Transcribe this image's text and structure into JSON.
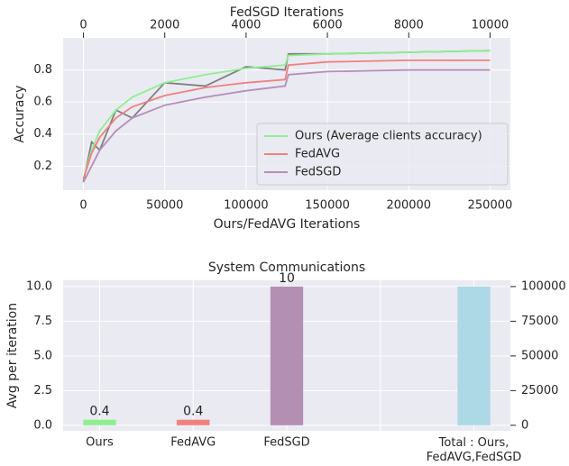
{
  "chart_data": [
    {
      "type": "line",
      "xlabel": "Ours/FedAVG Iterations",
      "x2label": "FedSGD Iterations",
      "ylabel": "Accuracy",
      "x": [
        0,
        5000,
        10000,
        20000,
        30000,
        50000,
        75000,
        100000,
        124000,
        126000,
        150000,
        200000,
        250000
      ],
      "series": [
        {
          "color": "#808080",
          "values": [
            0.1,
            0.35,
            0.3,
            0.55,
            0.5,
            0.72,
            0.7,
            0.82,
            0.8,
            0.9,
            0.9,
            0.91,
            0.92
          ]
        },
        {
          "name": "Ours (Average clients accuracy)",
          "color": "#90ee90",
          "values": [
            0.12,
            0.3,
            0.42,
            0.55,
            0.63,
            0.72,
            0.77,
            0.81,
            0.83,
            0.89,
            0.9,
            0.91,
            0.92
          ]
        },
        {
          "name": "FedAVG",
          "color": "#f08080",
          "values": [
            0.12,
            0.28,
            0.38,
            0.5,
            0.57,
            0.64,
            0.69,
            0.72,
            0.74,
            0.83,
            0.85,
            0.86,
            0.86
          ]
        },
        {
          "name": "FedSGD",
          "color": "#b48fb8",
          "values": [
            0.1,
            0.2,
            0.3,
            0.42,
            0.5,
            0.58,
            0.63,
            0.67,
            0.7,
            0.77,
            0.79,
            0.8,
            0.8
          ]
        }
      ],
      "xlim": [
        -12500,
        262500
      ],
      "xticks": [
        0,
        50000,
        100000,
        150000,
        200000,
        250000
      ],
      "x2lim": [
        -500,
        10500
      ],
      "x2ticks": [
        0,
        2000,
        4000,
        6000,
        8000,
        10000
      ],
      "ylim": [
        0.05,
        1.0
      ],
      "yticks": [
        0.2,
        0.4,
        0.6,
        0.8
      ],
      "grid": true,
      "legend": "lower right"
    },
    {
      "type": "bar",
      "title": "System Communications",
      "ylabel": "Avg per iteration",
      "categories": [
        "Ours",
        "FedAVG",
        "FedSGD",
        null,
        "Total : Ours,\nFedAVG,FedSGD"
      ],
      "series": [
        {
          "colors": [
            "#90ee90",
            "#f08080",
            "#b48fb4",
            null,
            null
          ],
          "values": [
            0.4,
            0.4,
            10,
            null,
            null
          ]
        },
        {
          "colors": [
            null,
            null,
            null,
            null,
            "#add8e6"
          ],
          "values": [
            null,
            null,
            null,
            null,
            100000
          ],
          "axis": "y2"
        }
      ],
      "ylim": [
        -0.4,
        10.45
      ],
      "yticks": [
        {
          "value": 0,
          "label": "0.0"
        },
        {
          "value": 2.5,
          "label": "2.5"
        },
        {
          "value": 5,
          "label": "5.0"
        },
        {
          "value": 7.5,
          "label": "7.5"
        },
        {
          "value": 10,
          "label": "10.0"
        }
      ],
      "y2lim": [
        -4000,
        104500
      ],
      "y2ticks": [
        0,
        25000,
        50000,
        75000,
        100000
      ],
      "grid": true
    }
  ]
}
